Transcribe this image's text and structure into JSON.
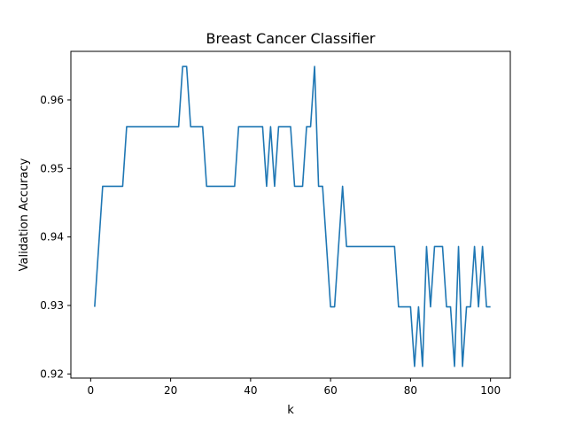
{
  "chart_data": {
    "type": "line",
    "title": "Breast Cancer Classifier",
    "xlabel": "k",
    "ylabel": "Validation Accuracy",
    "xlim": [
      -4.95,
      104.95
    ],
    "ylim": [
      0.9194,
      0.9671
    ],
    "xticks": [
      0,
      20,
      40,
      60,
      80,
      100
    ],
    "xtick_labels": [
      "0",
      "20",
      "40",
      "60",
      "80",
      "100"
    ],
    "yticks": [
      0.92,
      0.93,
      0.94,
      0.95,
      0.96
    ],
    "ytick_labels": [
      "0.92",
      "0.93",
      "0.94",
      "0.95",
      "0.96"
    ],
    "grid": false,
    "colors": {
      "line": "#1f77b4",
      "axes": "#000000",
      "background": "#ffffff"
    },
    "series": [
      {
        "x": [
          1,
          2,
          3,
          4,
          5,
          6,
          7,
          8,
          9,
          10,
          11,
          12,
          13,
          14,
          15,
          16,
          17,
          18,
          19,
          20,
          21,
          22,
          23,
          24,
          25,
          26,
          27,
          28,
          29,
          30,
          31,
          32,
          33,
          34,
          35,
          36,
          37,
          38,
          39,
          40,
          41,
          42,
          43,
          44,
          45,
          46,
          47,
          48,
          49,
          50,
          51,
          52,
          53,
          54,
          55,
          56,
          57,
          58,
          59,
          60,
          61,
          62,
          63,
          64,
          65,
          66,
          67,
          68,
          69,
          70,
          71,
          72,
          73,
          74,
          75,
          76,
          77,
          78,
          79,
          80,
          81,
          82,
          83,
          84,
          85,
          86,
          87,
          88,
          89,
          90,
          91,
          92,
          93,
          94,
          95,
          96,
          97,
          98,
          99,
          100
        ],
        "y": [
          0.9298,
          0.9386,
          0.9474,
          0.9474,
          0.9474,
          0.9474,
          0.9474,
          0.9474,
          0.9561,
          0.9561,
          0.9561,
          0.9561,
          0.9561,
          0.9561,
          0.9561,
          0.9561,
          0.9561,
          0.9561,
          0.9561,
          0.9561,
          0.9561,
          0.9561,
          0.9649,
          0.9649,
          0.9561,
          0.9561,
          0.9561,
          0.9561,
          0.9474,
          0.9474,
          0.9474,
          0.9474,
          0.9474,
          0.9474,
          0.9474,
          0.9474,
          0.9561,
          0.9561,
          0.9561,
          0.9561,
          0.9561,
          0.9561,
          0.9561,
          0.9474,
          0.9561,
          0.9474,
          0.9561,
          0.9561,
          0.9561,
          0.9561,
          0.9474,
          0.9474,
          0.9474,
          0.9561,
          0.9561,
          0.9649,
          0.9474,
          0.9474,
          0.9386,
          0.9298,
          0.9298,
          0.9386,
          0.9474,
          0.9386,
          0.9386,
          0.9386,
          0.9386,
          0.9386,
          0.9386,
          0.9386,
          0.9386,
          0.9386,
          0.9386,
          0.9386,
          0.9386,
          0.9386,
          0.9298,
          0.9298,
          0.9298,
          0.9298,
          0.9211,
          0.9298,
          0.9211,
          0.9386,
          0.9298,
          0.9386,
          0.9386,
          0.9386,
          0.9298,
          0.9298,
          0.9211,
          0.9386,
          0.9211,
          0.9298,
          0.9298,
          0.9386,
          0.9298,
          0.9386,
          0.9298,
          0.9298
        ]
      }
    ]
  }
}
